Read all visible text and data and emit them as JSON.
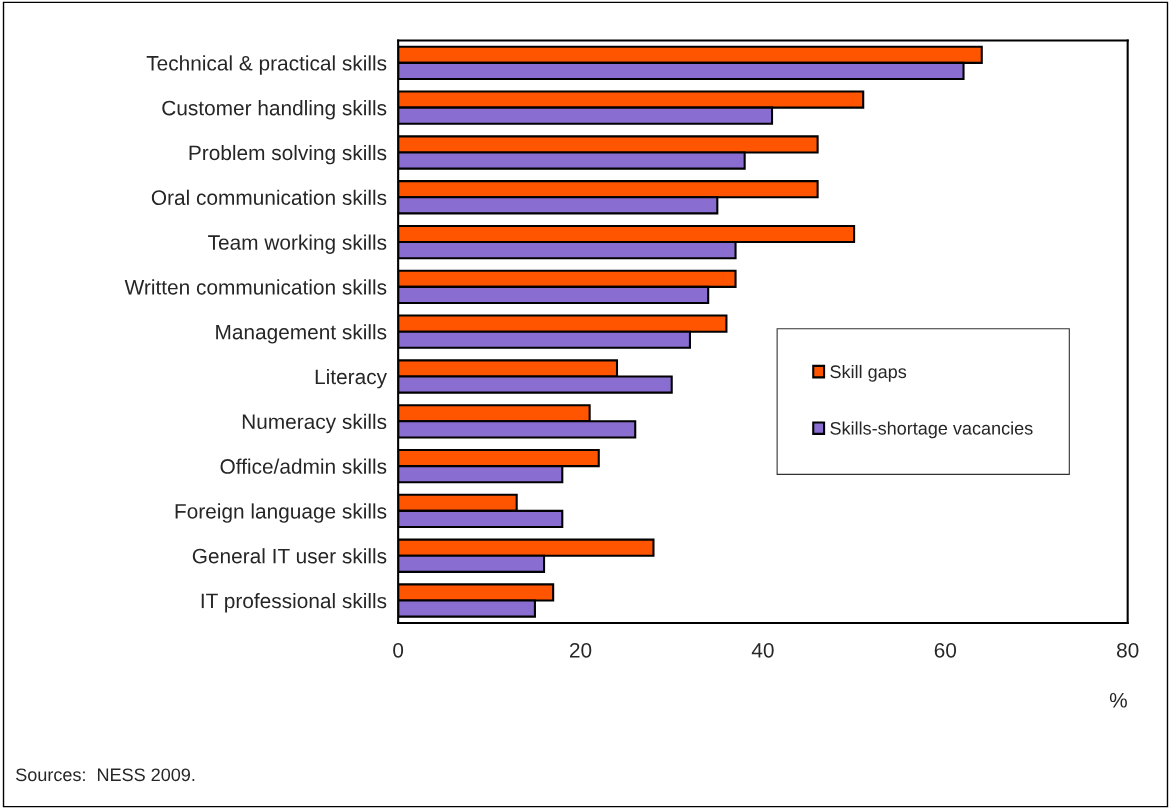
{
  "chart_data": {
    "type": "bar",
    "orientation": "horizontal",
    "xlabel": "%",
    "categories": [
      "Technical & practical skills",
      "Customer handling skills",
      "Problem solving skills",
      "Oral communication skills",
      "Team working skills",
      "Written communication skills",
      "Management skills",
      "Literacy",
      "Numeracy skills",
      "Office/admin skills",
      "Foreign language skills",
      "General IT user skills",
      "IT professional skills"
    ],
    "series": [
      {
        "name": "Skill gaps",
        "color": "#ff5500",
        "values": [
          64,
          51,
          46,
          46,
          50,
          37,
          36,
          24,
          21,
          22,
          13,
          28,
          17
        ]
      },
      {
        "name": "Skills-shortage vacancies",
        "color": "#8a6dd0",
        "values": [
          62,
          41,
          38,
          35,
          37,
          34,
          32,
          30,
          26,
          18,
          18,
          16,
          15
        ]
      }
    ],
    "xlim": [
      0,
      80
    ],
    "xticks": [
      0,
      20,
      40,
      60,
      80
    ],
    "grid": false,
    "legend": "right",
    "annotations": [
      "Sources:  NESS 2009."
    ]
  }
}
